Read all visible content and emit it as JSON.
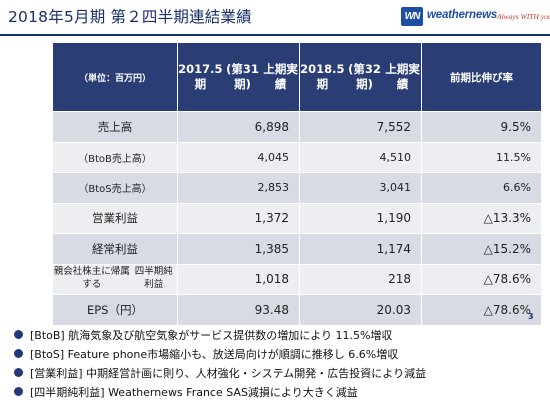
{
  "header": {
    "title": "2018年5月期 第２四半期連結業績",
    "logo_mark": "WN",
    "logo_name": "weathernews",
    "logo_tagline": "Always WITH you!"
  },
  "table": {
    "unit_label": "（単位：百万円）",
    "col1": [
      "2017.5期",
      "(第31期)",
      "上期実績"
    ],
    "col2": [
      "2018.5期",
      "(第32期)",
      "上期実績"
    ],
    "ratio_header": "前期比伸び率",
    "rows": [
      {
        "label": "売上高",
        "v1": "6,898",
        "v2": "7,552",
        "ratio": "9.5%"
      },
      {
        "label": "（BtoB売上高）",
        "v1": "4,045",
        "v2": "4,510",
        "ratio": "11.5%"
      },
      {
        "label": "（BtoS売上高）",
        "v1": "2,853",
        "v2": "3,041",
        "ratio": "6.6%"
      },
      {
        "label": "営業利益",
        "v1": "1,372",
        "v2": "1,190",
        "ratio": "△13.3%"
      },
      {
        "label": "経常利益",
        "v1": "1,385",
        "v2": "1,174",
        "ratio": "△15.2%"
      },
      {
        "label_lines": [
          "親会社株主に帰属する",
          "四半期純利益"
        ],
        "v1": "1,018",
        "v2": "218",
        "ratio": "△78.6%"
      },
      {
        "label": "EPS（円）",
        "v1": "93.48",
        "v2": "20.03",
        "ratio": "△78.6%"
      }
    ]
  },
  "bullets": [
    "[BtoB] 航海気象及び航空気象がサービス提供数の増加により 11.5%増収",
    "[BtoS] Feature phone市場縮小も、放送局向けが順調に推移し 6.6%増収",
    "[営業利益] 中期経営計画に則り、人材強化・システム開発・広告投資により減益",
    "[四半期純利益] Weathernews France SAS減損により大きく減益"
  ],
  "page_number": "3",
  "colors": {
    "header_text": "#1a2f6e",
    "table_header": "#2a3d75",
    "row_dark": "#d8dbe3",
    "row_light": "#edeef2",
    "logo_blue": "#1f4fa3",
    "logo_red": "#d0352c"
  }
}
